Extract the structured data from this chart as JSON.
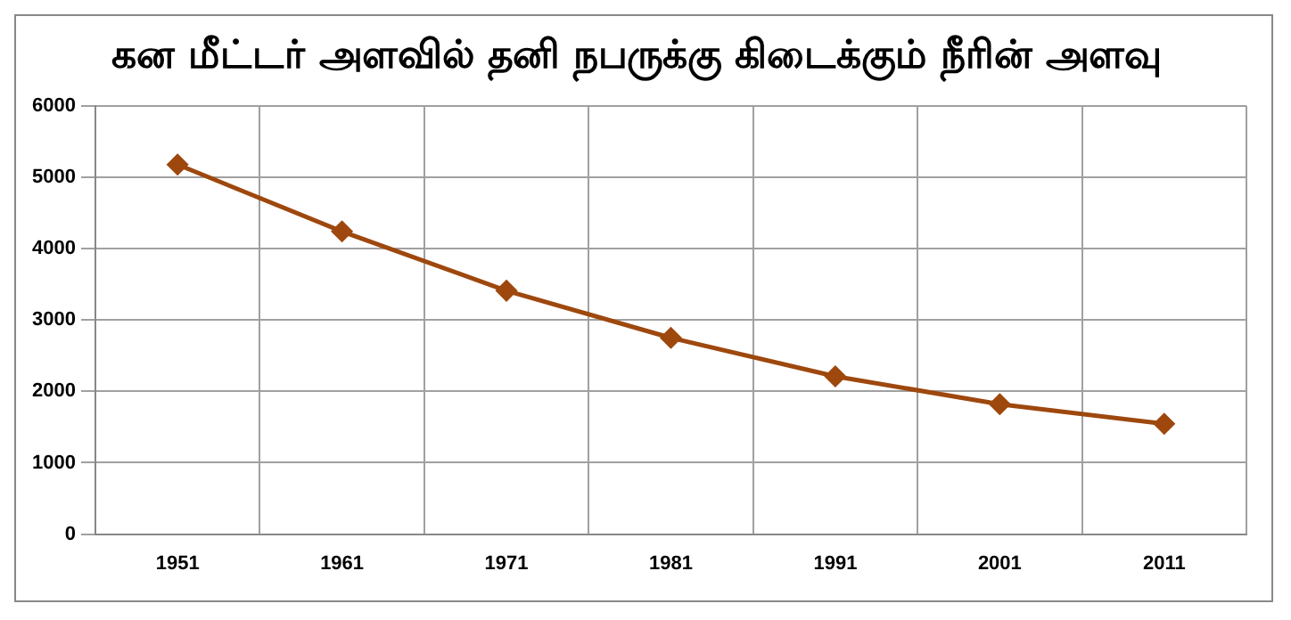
{
  "chart_data": {
    "type": "line",
    "title": "கன மீட்டர் அளவில் தனி நபருக்கு கிடைக்கும் நீரின் அளவு",
    "categories": [
      "1951",
      "1961",
      "1971",
      "1981",
      "1991",
      "2001",
      "2011"
    ],
    "series": [
      {
        "color": "#9e480e",
        "values": [
          5177,
          4240,
          3410,
          2750,
          2210,
          1820,
          1545
        ]
      }
    ],
    "ylim": [
      0,
      6000
    ],
    "yticks": [
      0,
      1000,
      2000,
      3000,
      4000,
      5000,
      6000
    ],
    "grid": true,
    "legend": false,
    "marker": "diamond",
    "line_style": "solid"
  }
}
